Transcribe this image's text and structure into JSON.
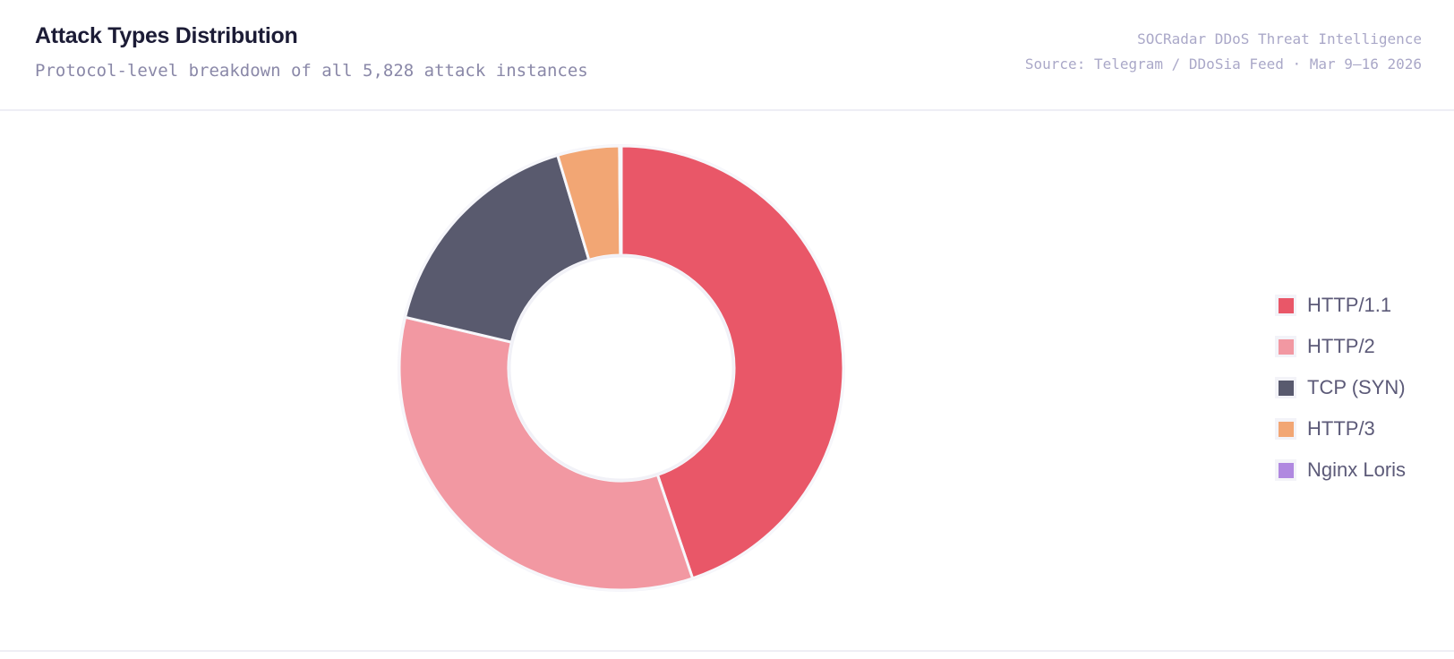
{
  "header": {
    "title": "Attack Types Distribution",
    "subtitle": "Protocol-level breakdown of all 5,828 attack instances",
    "meta_line1": "SOCRadar DDoS Threat Intelligence",
    "meta_line2": "Source: Telegram / DDoSia Feed · Mar 9–16 2026"
  },
  "legend": {
    "items": [
      {
        "label": "HTTP/1.1",
        "color": "#e95768"
      },
      {
        "label": "HTTP/2",
        "color": "#f298a2"
      },
      {
        "label": "TCP (SYN)",
        "color": "#595a6e"
      },
      {
        "label": "HTTP/3",
        "color": "#f2a674"
      },
      {
        "label": "Nginx Loris",
        "color": "#b088e0"
      }
    ]
  },
  "chart_data": {
    "type": "pie",
    "subtype": "donut",
    "title": "Attack Types Distribution",
    "subtitle": "Protocol-level breakdown of all 5,828 attack instances",
    "total": 5828,
    "categories": [
      "HTTP/1.1",
      "HTTP/2",
      "TCP (SYN)",
      "HTTP/3",
      "Nginx Loris"
    ],
    "values": [
      2611,
      1974,
      973,
      262,
      8
    ],
    "percentages": [
      44.8,
      33.9,
      16.7,
      4.5,
      0.1
    ],
    "colors": [
      "#e95768",
      "#f298a2",
      "#595a6e",
      "#f2a674",
      "#b088e0"
    ],
    "legend_position": "right",
    "start_angle": "top, clockwise"
  }
}
